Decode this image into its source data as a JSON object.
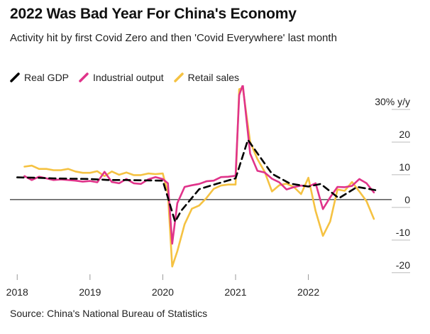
{
  "title": "2022 Was Bad Year For China's Economy",
  "subtitle": "Activity hit by first Covid Zero and then 'Covid Everywhere' last month",
  "source": "Source: China's National Bureau of Statistics",
  "colors": {
    "gdp": "#000000",
    "industrial": "#e0338a",
    "retail": "#f5c242",
    "axis": "#000000",
    "tickmark": "#999999"
  },
  "chart_data": {
    "type": "line",
    "title": "2022 Was Bad Year For China's Economy",
    "ylabel": "",
    "xlabel": "",
    "y_unit": "% y/y",
    "y_ticks": [
      "30% y/y",
      "20",
      "10",
      "0",
      "-10",
      "-20"
    ],
    "y_tick_values": [
      30,
      20,
      10,
      0,
      -10,
      -20
    ],
    "ylim": [
      -22,
      35
    ],
    "x_ticks": [
      "2018",
      "2019",
      "2020",
      "2021",
      "2022"
    ],
    "x_tick_values": [
      2018,
      2019,
      2020,
      2021,
      2022
    ],
    "xlim": [
      2017.9,
      2022.95
    ],
    "grid": false,
    "legend_position": "top-left",
    "series": [
      {
        "name": "Real GDP",
        "style": "dashed",
        "x": [
          2018.0,
          2018.25,
          2018.5,
          2018.75,
          2019.0,
          2019.25,
          2019.5,
          2019.75,
          2020.0,
          2020.17,
          2020.25,
          2020.5,
          2020.75,
          2021.0,
          2021.17,
          2021.5,
          2021.75,
          2022.0,
          2022.17,
          2022.42,
          2022.67,
          2022.92
        ],
        "values": [
          6.8,
          6.7,
          6.5,
          6.4,
          6.3,
          6.0,
          6.0,
          5.9,
          5.8,
          -6.8,
          -3.5,
          3.2,
          4.9,
          6.5,
          18.3,
          7.9,
          4.9,
          4.0,
          4.8,
          0.4,
          3.9,
          2.9
        ]
      },
      {
        "name": "Industrial output",
        "style": "solid",
        "x": [
          2018.1,
          2018.2,
          2018.3,
          2018.4,
          2018.5,
          2018.6,
          2018.7,
          2018.8,
          2018.9,
          2019.0,
          2019.1,
          2019.2,
          2019.3,
          2019.4,
          2019.5,
          2019.6,
          2019.7,
          2019.8,
          2019.9,
          2020.0,
          2020.07,
          2020.13,
          2020.2,
          2020.3,
          2020.4,
          2020.5,
          2020.6,
          2020.7,
          2020.8,
          2020.9,
          2021.0,
          2021.05,
          2021.1,
          2021.2,
          2021.3,
          2021.4,
          2021.5,
          2021.6,
          2021.7,
          2021.8,
          2021.9,
          2022.0,
          2022.1,
          2022.2,
          2022.3,
          2022.4,
          2022.5,
          2022.6,
          2022.7,
          2022.8,
          2022.9
        ],
        "values": [
          7.2,
          6.0,
          7.0,
          6.5,
          6.0,
          6.2,
          6.0,
          5.8,
          5.5,
          5.7,
          5.3,
          8.5,
          5.4,
          5.0,
          6.3,
          5.0,
          4.8,
          6.2,
          6.9,
          6.3,
          5.0,
          -13.5,
          -1.1,
          3.9,
          4.4,
          4.8,
          5.6,
          5.8,
          6.9,
          7.0,
          7.3,
          32.0,
          35.1,
          14.1,
          8.8,
          8.3,
          6.4,
          5.3,
          3.1,
          3.8,
          4.3,
          4.0,
          5.0,
          -2.9,
          0.7,
          3.9,
          3.8,
          4.2,
          6.3,
          5.0,
          2.2
        ]
      },
      {
        "name": "Retail sales",
        "style": "solid",
        "x": [
          2018.1,
          2018.2,
          2018.3,
          2018.4,
          2018.5,
          2018.6,
          2018.7,
          2018.8,
          2018.9,
          2019.0,
          2019.1,
          2019.2,
          2019.3,
          2019.4,
          2019.5,
          2019.6,
          2019.7,
          2019.8,
          2019.9,
          2020.0,
          2020.07,
          2020.13,
          2020.2,
          2020.3,
          2020.4,
          2020.5,
          2020.6,
          2020.7,
          2020.8,
          2020.9,
          2021.0,
          2021.05,
          2021.1,
          2021.2,
          2021.3,
          2021.4,
          2021.5,
          2021.6,
          2021.7,
          2021.8,
          2021.9,
          2022.0,
          2022.1,
          2022.2,
          2022.3,
          2022.4,
          2022.5,
          2022.6,
          2022.7,
          2022.8,
          2022.9
        ],
        "values": [
          10.1,
          10.4,
          9.4,
          9.4,
          9.0,
          9.0,
          9.4,
          8.6,
          8.2,
          8.2,
          8.7,
          7.2,
          8.6,
          7.6,
          8.3,
          7.5,
          7.5,
          8.0,
          7.8,
          8.0,
          2.0,
          -20.5,
          -15.8,
          -7.5,
          -2.8,
          -1.8,
          0.5,
          3.3,
          4.3,
          4.6,
          4.6,
          33.8,
          34.2,
          17.7,
          12.4,
          8.5,
          2.5,
          4.4,
          4.9,
          3.9,
          1.7,
          6.7,
          -3.5,
          -11.1,
          -6.7,
          3.1,
          2.7,
          5.4,
          2.5,
          -0.5,
          -5.9
        ]
      }
    ]
  }
}
